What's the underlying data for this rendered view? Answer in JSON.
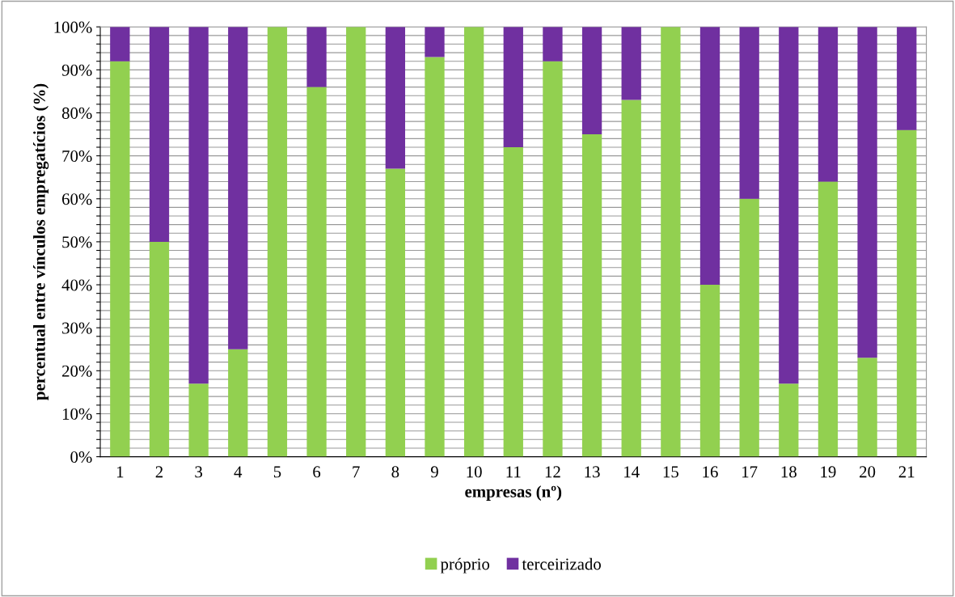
{
  "chart_data": {
    "type": "bar",
    "stacked": true,
    "xlabel": "empresas (nº)",
    "ylabel": "percentual entre vínculos empregatícios (%)",
    "categories": [
      "1",
      "2",
      "3",
      "4",
      "5",
      "6",
      "7",
      "8",
      "9",
      "10",
      "11",
      "12",
      "13",
      "14",
      "15",
      "16",
      "17",
      "18",
      "19",
      "20",
      "21"
    ],
    "series": [
      {
        "name": "próprio",
        "color": "#92d050",
        "values": [
          92,
          50,
          17,
          25,
          100,
          86,
          100,
          67,
          93,
          100,
          72,
          92,
          75,
          83,
          100,
          40,
          60,
          17,
          64,
          23,
          76
        ]
      },
      {
        "name": "terceirizado",
        "color": "#7030a0",
        "values": [
          8,
          50,
          83,
          75,
          0,
          14,
          0,
          33,
          7,
          0,
          28,
          8,
          25,
          17,
          0,
          60,
          40,
          83,
          36,
          77,
          24
        ]
      }
    ],
    "ylim": [
      0,
      100
    ],
    "yticks": [
      {
        "value": 0,
        "label": "0%"
      },
      {
        "value": 2,
        "label": null
      },
      {
        "value": 4,
        "label": null
      },
      {
        "value": 6,
        "label": null
      },
      {
        "value": 8,
        "label": null
      },
      {
        "value": 10,
        "label": "10%"
      },
      {
        "value": 12,
        "label": null
      },
      {
        "value": 14,
        "label": null
      },
      {
        "value": 16,
        "label": null
      },
      {
        "value": 18,
        "label": null
      },
      {
        "value": 20,
        "label": "20%"
      },
      {
        "value": 22,
        "label": null
      },
      {
        "value": 24,
        "label": null
      },
      {
        "value": 26,
        "label": null
      },
      {
        "value": 28,
        "label": null
      },
      {
        "value": 30,
        "label": "30%"
      },
      {
        "value": 32,
        "label": null
      },
      {
        "value": 34,
        "label": null
      },
      {
        "value": 36,
        "label": null
      },
      {
        "value": 38,
        "label": null
      },
      {
        "value": 40,
        "label": "40%"
      },
      {
        "value": 42,
        "label": null
      },
      {
        "value": 44,
        "label": null
      },
      {
        "value": 46,
        "label": null
      },
      {
        "value": 48,
        "label": null
      },
      {
        "value": 50,
        "label": "50%"
      },
      {
        "value": 52,
        "label": null
      },
      {
        "value": 54,
        "label": null
      },
      {
        "value": 56,
        "label": null
      },
      {
        "value": 58,
        "label": null
      },
      {
        "value": 60,
        "label": "60%"
      },
      {
        "value": 62,
        "label": null
      },
      {
        "value": 64,
        "label": null
      },
      {
        "value": 66,
        "label": null
      },
      {
        "value": 68,
        "label": null
      },
      {
        "value": 70,
        "label": "70%"
      },
      {
        "value": 72,
        "label": null
      },
      {
        "value": 74,
        "label": null
      },
      {
        "value": 76,
        "label": null
      },
      {
        "value": 78,
        "label": null
      },
      {
        "value": 80,
        "label": "80%"
      },
      {
        "value": 82,
        "label": null
      },
      {
        "value": 84,
        "label": null
      },
      {
        "value": 86,
        "label": null
      },
      {
        "value": 88,
        "label": null
      },
      {
        "value": 90,
        "label": "90%"
      },
      {
        "value": 92,
        "label": null
      },
      {
        "value": 94,
        "label": null
      },
      {
        "value": 96,
        "label": null
      },
      {
        "value": 98,
        "label": null
      },
      {
        "value": 100,
        "label": "100%"
      }
    ],
    "grid": "y",
    "legend": "bottom"
  }
}
